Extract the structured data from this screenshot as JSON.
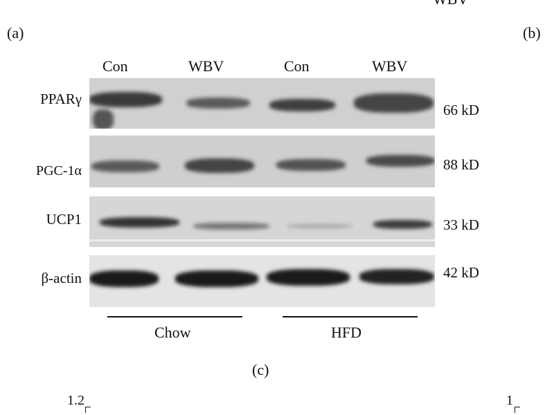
{
  "panel_labels": {
    "a": "(a)",
    "b": "(b)",
    "c": "(c)"
  },
  "top_legend_partial": "WBV",
  "lane_headers": [
    "Con",
    "WBV",
    "Con",
    "WBV"
  ],
  "blots": [
    {
      "protein": "PPARγ",
      "size": "66 kD"
    },
    {
      "protein": "PGC-1α",
      "size": "88 kD"
    },
    {
      "protein": "UCP1",
      "size": "33 kD"
    },
    {
      "protein": "β-actin",
      "size": "42 kD"
    }
  ],
  "groups": [
    "Chow",
    "HFD"
  ],
  "axis_ticks": {
    "left_top": "1.2",
    "right_top": "1"
  }
}
